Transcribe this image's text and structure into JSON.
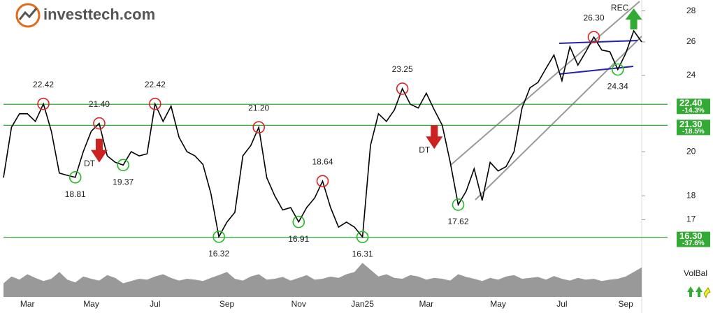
{
  "logo": "investtech.com",
  "chart_data": {
    "type": "line",
    "color": "#000000",
    "log_scale": true,
    "ylim": [
      16.1,
      28.5
    ],
    "yticks": [
      17,
      18,
      20,
      24,
      26,
      28
    ],
    "categories": [
      null,
      null,
      null,
      "Mar",
      null,
      null,
      null,
      null,
      null,
      null,
      null,
      "May",
      null,
      null,
      null,
      null,
      null,
      null,
      null,
      "Jul",
      null,
      null,
      null,
      null,
      null,
      null,
      null,
      null,
      "Sep",
      null,
      null,
      null,
      null,
      null,
      null,
      null,
      null,
      "Nov",
      null,
      null,
      null,
      null,
      null,
      null,
      null,
      "Jan25",
      null,
      null,
      null,
      null,
      null,
      null,
      null,
      "Mar",
      null,
      null,
      null,
      null,
      null,
      null,
      null,
      null,
      "May",
      null,
      null,
      null,
      null,
      null,
      null,
      null,
      "Jul",
      null,
      null,
      null,
      null,
      null,
      null,
      null,
      "Sep",
      null,
      null
    ],
    "values": [
      18.8,
      21.2,
      21.9,
      21.9,
      21.5,
      22.42,
      21.0,
      19.0,
      18.9,
      18.81,
      20.0,
      21.0,
      21.4,
      19.8,
      19.5,
      19.37,
      20.0,
      19.8,
      19.9,
      22.42,
      21.5,
      22.3,
      20.7,
      20.0,
      19.8,
      19.4,
      18.1,
      16.32,
      16.9,
      17.3,
      19.8,
      20.3,
      21.2,
      18.8,
      18.0,
      17.4,
      17.5,
      16.91,
      17.5,
      17.9,
      18.64,
      17.5,
      16.7,
      16.9,
      16.7,
      16.31,
      20.3,
      21.9,
      21.5,
      22.1,
      23.25,
      22.4,
      22.2,
      23.0,
      22.1,
      21.3,
      19.5,
      17.62,
      18.2,
      19.2,
      17.8,
      19.5,
      19.1,
      19.3,
      20.0,
      22.2,
      23.3,
      23.6,
      24.4,
      25.2,
      23.7,
      25.7,
      24.6,
      25.4,
      26.3,
      25.5,
      25.4,
      24.34,
      25.3,
      26.7,
      26.0
    ],
    "volume_label": "VolBal",
    "volume_color": "#999999",
    "volume": [
      30,
      45,
      38,
      50,
      42,
      35,
      40,
      55,
      38,
      32,
      45,
      40,
      36,
      48,
      42,
      30,
      35,
      40,
      38,
      45,
      50,
      42,
      36,
      40,
      38,
      35,
      42,
      48,
      55,
      40,
      36,
      45,
      50,
      38,
      40,
      44,
      36,
      42,
      48,
      38,
      40,
      45,
      42,
      50,
      55,
      75,
      60,
      45,
      50,
      42,
      40,
      48,
      45,
      38,
      42,
      40,
      36,
      50,
      44,
      40,
      35,
      42,
      38,
      45,
      48,
      40,
      42,
      44,
      38,
      46,
      40,
      36,
      42,
      38,
      40,
      35,
      38,
      40,
      45,
      55,
      65
    ],
    "annotations": [
      {
        "x": 5,
        "value": 22.42,
        "label": "22.42",
        "kind": "high"
      },
      {
        "x": 9,
        "value": 18.81,
        "label": "18.81",
        "kind": "low"
      },
      {
        "x": 12,
        "value": 21.4,
        "label": "21.40",
        "kind": "high"
      },
      {
        "x": 15,
        "value": 19.37,
        "label": "19.37",
        "kind": "low"
      },
      {
        "x": 19,
        "value": 22.42,
        "label": "22.42",
        "kind": "high"
      },
      {
        "x": 27,
        "value": 16.32,
        "label": "16.32",
        "kind": "low"
      },
      {
        "x": 32,
        "value": 21.2,
        "label": "21.20",
        "kind": "high"
      },
      {
        "x": 37,
        "value": 16.91,
        "label": "16.91",
        "kind": "low"
      },
      {
        "x": 40,
        "value": 18.64,
        "label": "18.64",
        "kind": "high"
      },
      {
        "x": 45,
        "value": 16.31,
        "label": "16.31",
        "kind": "low"
      },
      {
        "x": 50,
        "value": 23.25,
        "label": "23.25",
        "kind": "high"
      },
      {
        "x": 57,
        "value": 17.62,
        "label": "17.62",
        "kind": "low"
      },
      {
        "x": 74,
        "value": 26.3,
        "label": "26.30",
        "kind": "high"
      },
      {
        "x": 77,
        "value": 24.34,
        "label": "24.34",
        "kind": "low"
      }
    ],
    "signals": [
      {
        "x": 12,
        "text": "DT",
        "kind": "sell"
      },
      {
        "x": 54,
        "text": "DT",
        "kind": "sell"
      },
      {
        "x": 79,
        "text": "REC",
        "kind": "buy"
      }
    ],
    "levels": [
      {
        "value": 22.4,
        "label": "22.40",
        "change": "-14.3%"
      },
      {
        "value": 21.3,
        "label": "21.30",
        "change": "-18.5%"
      },
      {
        "value": 16.3,
        "label": "16.30",
        "change": "-37.6%"
      }
    ],
    "level_color": "#33aa33"
  }
}
